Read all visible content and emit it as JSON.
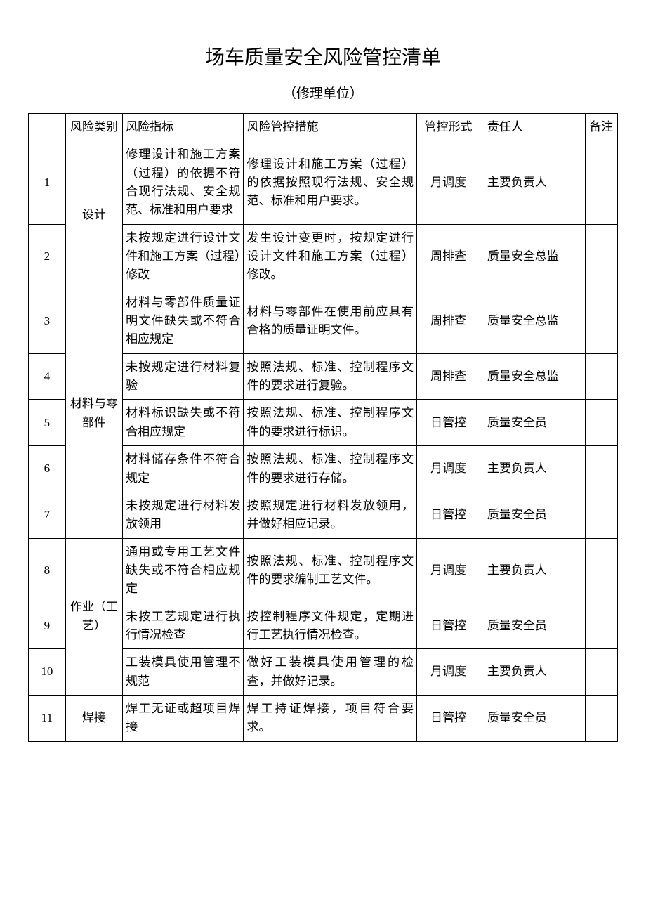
{
  "title": "场车质量安全风险管控清单",
  "subtitle": "（修理单位）",
  "headers": {
    "num": "",
    "category": "风险类别",
    "indicator": "风险指标",
    "measure": "风险管控措施",
    "form": "管控形式",
    "responsible": "责任人",
    "note": "备注"
  },
  "categories": {
    "design": "设计",
    "material": "材料与零部件",
    "process": "作业（工艺）",
    "welding": "焊接"
  },
  "rows": [
    {
      "num": "1",
      "indicator": "修理设计和施工方案（过程）的依据不符合现行法规、安全规范、标准和用户要求",
      "measure": "修理设计和施工方案（过程）的依据按照现行法规、安全规范、标准和用户要求。",
      "form": "月调度",
      "responsible": "主要负责人",
      "note": ""
    },
    {
      "num": "2",
      "indicator": "未按规定进行设计文件和施工方案（过程）修改",
      "measure": "发生设计变更时，按规定进行设计文件和施工方案（过程）修改。",
      "form": "周排查",
      "responsible": "质量安全总监",
      "note": ""
    },
    {
      "num": "3",
      "indicator": "材料与零部件质量证明文件缺失或不符合相应规定",
      "measure": "材料与零部件在使用前应具有合格的质量证明文件。",
      "form": "周排查",
      "responsible": "质量安全总监",
      "note": ""
    },
    {
      "num": "4",
      "indicator": "未按规定进行材料复验",
      "measure": "按照法规、标准、控制程序文件的要求进行复验。",
      "form": "周排查",
      "responsible": "质量安全总监",
      "note": ""
    },
    {
      "num": "5",
      "indicator": "材料标识缺失或不符合相应规定",
      "measure": "按照法规、标准、控制程序文件的要求进行标识。",
      "form": "日管控",
      "responsible": "质量安全员",
      "note": ""
    },
    {
      "num": "6",
      "indicator": "材料储存条件不符合规定",
      "measure": "按照法规、标准、控制程序文件的要求进行存储。",
      "form": "月调度",
      "responsible": "主要负责人",
      "note": ""
    },
    {
      "num": "7",
      "indicator": "未按规定进行材料发放领用",
      "measure": "按照规定进行材料发放领用，并做好相应记录。",
      "form": "日管控",
      "responsible": "质量安全员",
      "note": ""
    },
    {
      "num": "8",
      "indicator": "通用或专用工艺文件缺失或不符合相应规定",
      "measure": "按照法规、标准、控制程序文件的要求编制工艺文件。",
      "form": "月调度",
      "responsible": "主要负责人",
      "note": ""
    },
    {
      "num": "9",
      "indicator": "未按工艺规定进行执行情况检查",
      "measure": "按控制程序文件规定，定期进行工艺执行情况检查。",
      "form": "日管控",
      "responsible": "质量安全员",
      "note": ""
    },
    {
      "num": "10",
      "indicator": "工装模具使用管理不规范",
      "measure": "做好工装模具使用管理的检查，并做好记录。",
      "form": "月调度",
      "responsible": "主要负责人",
      "note": ""
    },
    {
      "num": "11",
      "indicator": "焊工无证或超项目焊接",
      "measure": "焊工持证焊接，项目符合要求。",
      "form": "日管控",
      "responsible": "质量安全员",
      "note": ""
    }
  ]
}
